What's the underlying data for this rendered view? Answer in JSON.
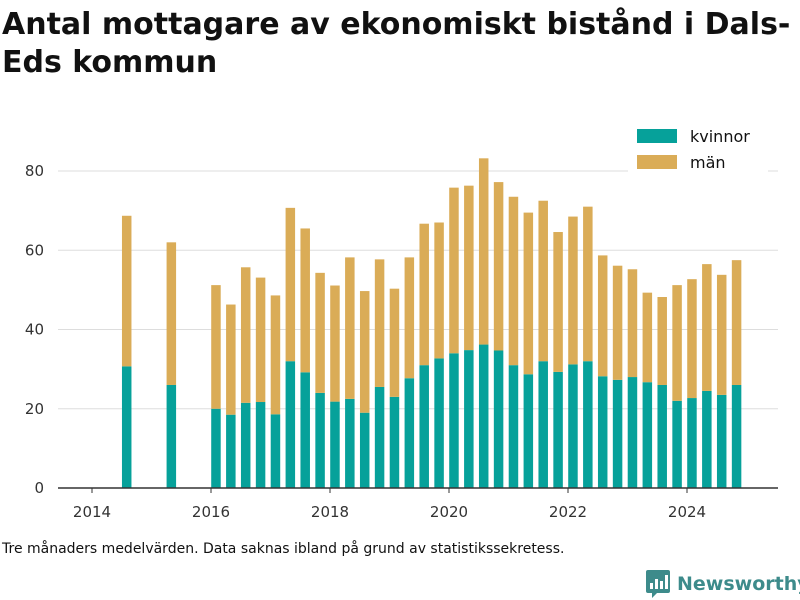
{
  "title": "Antal mottagare av ekonomiskt bistånd i Dals-Eds kommun",
  "footnote": "Tre månaders medelvärden. Data saknas ibland på grund av statistikssekretess.",
  "brand": {
    "name": "Newsworthy"
  },
  "colors": {
    "kvinnor": "#06a19a",
    "man": "#daac57",
    "grid": "#dddddd",
    "axis": "#333333"
  },
  "chart_data": {
    "type": "bar",
    "stacked": true,
    "x_ticks": [
      "2014",
      "2016",
      "2018",
      "2020",
      "2022",
      "2024"
    ],
    "y_ticks": [
      "0",
      "20",
      "40",
      "60",
      "80"
    ],
    "ylim": [
      0,
      87
    ],
    "grid": true,
    "legend_position": "top-right",
    "x": [
      "2014-08",
      "2015-05",
      "2016-02",
      "2016-05",
      "2016-08",
      "2016-11",
      "2017-02",
      "2017-05",
      "2017-08",
      "2017-11",
      "2018-02",
      "2018-05",
      "2018-08",
      "2018-11",
      "2019-02",
      "2019-05",
      "2019-08",
      "2019-11",
      "2020-02",
      "2020-05",
      "2020-08",
      "2020-11",
      "2021-02",
      "2021-05",
      "2021-08",
      "2021-11",
      "2022-02",
      "2022-05",
      "2022-08",
      "2022-11",
      "2023-02",
      "2023-05",
      "2023-08",
      "2023-11",
      "2024-02",
      "2024-05",
      "2024-08",
      "2024-11"
    ],
    "series": [
      {
        "name": "kvinnor",
        "values": [
          30.7,
          26,
          20,
          18.5,
          21.5,
          21.7,
          18.6,
          32,
          29.2,
          24,
          21.8,
          22.5,
          19,
          25.5,
          23,
          27.7,
          31,
          32.7,
          34,
          34.8,
          36.2,
          34.7,
          31,
          28.7,
          32,
          29.3,
          31.2,
          32,
          28.2,
          27.3,
          28,
          26.7,
          26,
          22,
          22.7,
          24.5,
          23.5,
          26
        ]
      },
      {
        "name": "män",
        "values": [
          38,
          36,
          31.2,
          27.8,
          34.2,
          31.4,
          30,
          38.7,
          36.3,
          30.3,
          29.3,
          35.7,
          30.7,
          32.2,
          27.3,
          30.5,
          35.7,
          34.3,
          41.8,
          41.5,
          47,
          42.5,
          42.5,
          40.8,
          40.5,
          35.3,
          37.3,
          39,
          30.5,
          28.8,
          27.2,
          22.6,
          22.2,
          29.2,
          30,
          32,
          30.3,
          31.5
        ]
      }
    ]
  }
}
